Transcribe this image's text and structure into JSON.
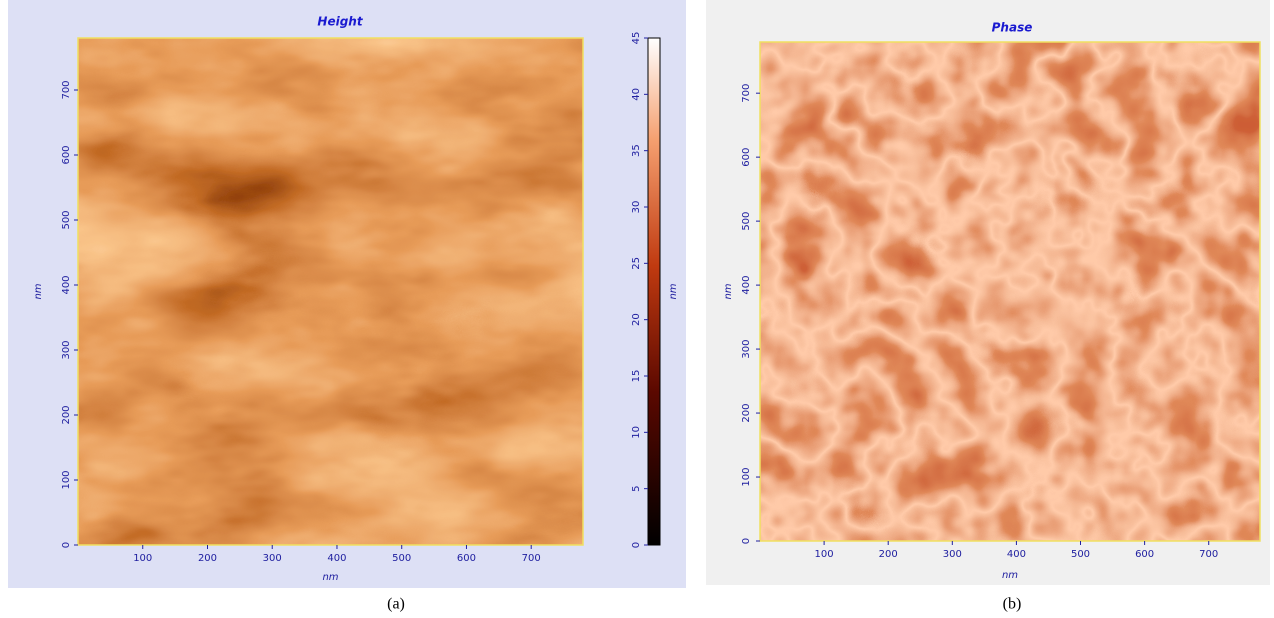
{
  "panels": [
    {
      "title": "Height",
      "xlabel": "nm",
      "ylabel": "nm",
      "xlim": [
        0,
        780
      ],
      "ylim": [
        0,
        780
      ],
      "xticks": [
        100,
        200,
        300,
        400,
        500,
        600,
        700
      ],
      "yticks": [
        0,
        100,
        200,
        300,
        400,
        500,
        600,
        700
      ],
      "colorbar": {
        "label": "nm",
        "lim": [
          0,
          45
        ],
        "ticks": [
          0,
          5,
          10,
          15,
          20,
          25,
          30,
          35,
          40,
          45
        ]
      },
      "caption": "(a)"
    },
    {
      "title": "Phase",
      "xlabel": "nm",
      "ylabel": "nm",
      "xlim": [
        0,
        780
      ],
      "ylim": [
        0,
        780
      ],
      "xticks": [
        100,
        200,
        300,
        400,
        500,
        600,
        700
      ],
      "yticks": [
        0,
        100,
        200,
        300,
        400,
        500,
        600,
        700
      ],
      "caption": "(b)"
    }
  ]
}
